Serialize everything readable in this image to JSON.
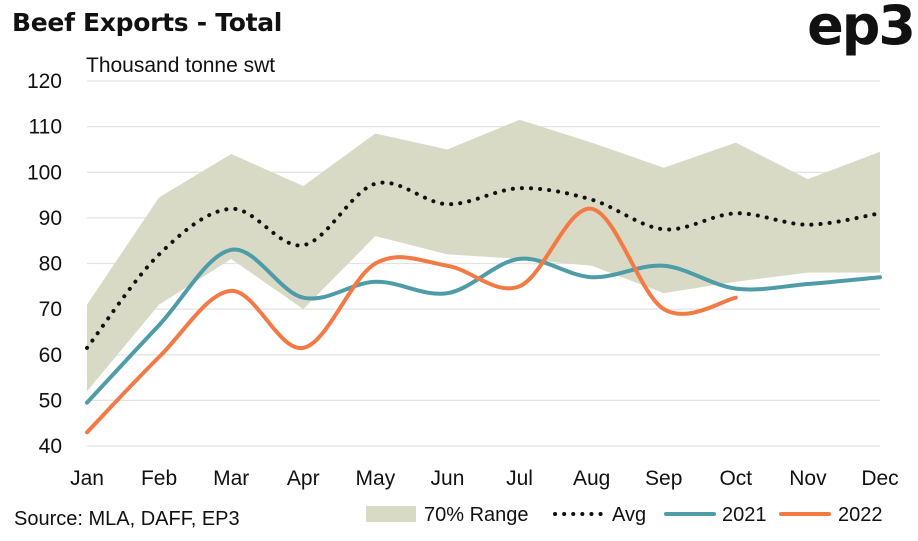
{
  "header": {
    "title": "Beef Exports - Total",
    "logo_text": "ep3"
  },
  "footer": {
    "source": "Source: MLA, DAFF, EP3"
  },
  "chart_data": {
    "type": "line",
    "title": "Beef Exports - Total",
    "ylabel": "Thousand tonne swt",
    "xlabel": "",
    "categories": [
      "Jan",
      "Feb",
      "Mar",
      "Apr",
      "May",
      "Jun",
      "Jul",
      "Aug",
      "Sep",
      "Oct",
      "Nov",
      "Dec"
    ],
    "y_ticks": [
      40,
      50,
      60,
      70,
      80,
      90,
      100,
      110,
      120
    ],
    "ylim": [
      40,
      120
    ],
    "grid": true,
    "legend_position": "bottom-right",
    "range": {
      "name": "70% Range",
      "color": "#d9dac5",
      "upper": [
        71,
        94.5,
        104,
        97,
        108.5,
        105,
        111.5,
        106.5,
        101,
        106.5,
        98.5,
        104.5
      ],
      "lower": [
        52,
        71,
        81,
        70,
        86,
        82,
        81,
        79.5,
        73.5,
        76,
        78,
        78
      ]
    },
    "series": [
      {
        "name": "Avg",
        "color": "#111111",
        "style": "dotted",
        "values": [
          61.5,
          82,
          92,
          84,
          97.5,
          93,
          96.5,
          94,
          87.5,
          91,
          88.5,
          91
        ]
      },
      {
        "name": "2021",
        "color": "#4e9ca8",
        "style": "solid",
        "values": [
          49.5,
          66.5,
          83,
          72.5,
          76,
          73.5,
          81,
          77,
          79.5,
          74.5,
          75.5,
          77
        ]
      },
      {
        "name": "2022",
        "color": "#f47a45",
        "style": "solid",
        "values": [
          43,
          59.5,
          74,
          61.5,
          80,
          79.5,
          75,
          92,
          70,
          72.5,
          null,
          null
        ]
      }
    ]
  }
}
